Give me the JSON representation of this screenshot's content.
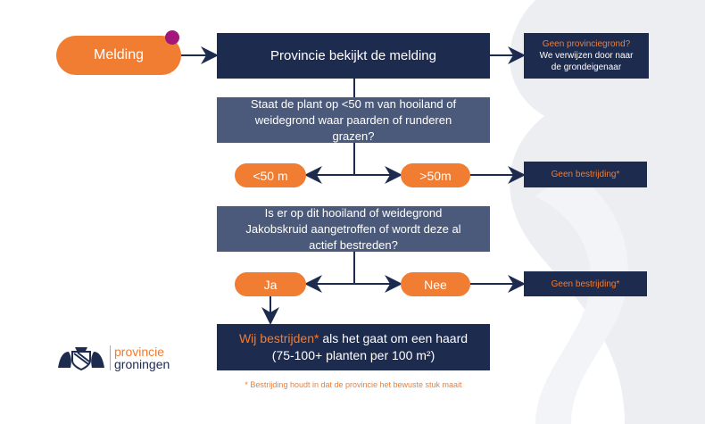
{
  "start": {
    "label": "Melding"
  },
  "step1": {
    "label": "Provincie bekijkt de melding"
  },
  "side1": {
    "highlight": "Geen provinciegrond?",
    "text": "We verwijzen door naar de grondeigenaar"
  },
  "question1": {
    "text": "Staat de plant op <50 m van hooiland of weidegrond waar paarden of runderen grazen?"
  },
  "opt1": {
    "left": "<50 m",
    "right": ">50m",
    "outcome": "Geen bestrijding*"
  },
  "question2": {
    "text": "Is er op dit hooiland of weidegrond Jakobskruid aangetroffen of wordt deze al actief bestreden?"
  },
  "opt2": {
    "left": "Ja",
    "right": "Nee",
    "outcome": "Geen bestrijding*"
  },
  "final": {
    "highlight": "Wij bestrijden*",
    "line1_rest": " als het gaat om een haard",
    "line2": "(75-100+ planten per 100 m²)"
  },
  "footnote": "* Bestrijding houdt in dat de provincie het bewuste stuk maait",
  "logo": {
    "line1": "provincie",
    "line2": "groningen"
  },
  "colors": {
    "navy": "#1d2b4f",
    "slate": "#4b5a7b",
    "orange": "#f07d32",
    "magenta": "#a3177a"
  }
}
